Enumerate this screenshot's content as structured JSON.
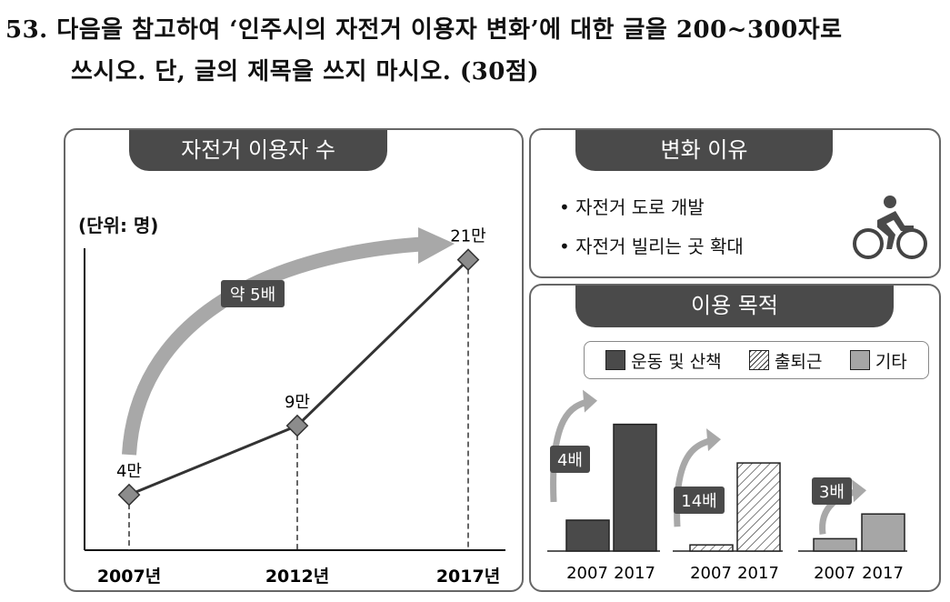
{
  "question": {
    "line1": "53. 다음을 참고하여 ‘인주시의 자전거 이용자 변화’에 대한 글을 200~300자로",
    "line2": "쓰시오. 단, 글의 제목을 쓰지 마시오. (30점)"
  },
  "reasons": {
    "title": "변화 이유",
    "items": [
      "• 자전거 도로 개발",
      "• 자전거 빌리는 곳 확대"
    ],
    "icon": "bicycle-rider-icon"
  },
  "colors": {
    "dark": "#4a4a4a",
    "arrow": "#a8a8a8",
    "light_bar": "#a6a6a6",
    "marker": "#8c8c8c"
  },
  "chart_data": [
    {
      "type": "line",
      "title": "자전거 이용자 수",
      "unit_label": "(단위: 명)",
      "categories": [
        "2007년",
        "2012년",
        "2017년"
      ],
      "values": [
        40000,
        90000,
        210000
      ],
      "data_labels": [
        "4만",
        "9만",
        "21만"
      ],
      "annotation": "약 5배",
      "ylim": [
        0,
        240000
      ]
    },
    {
      "type": "bar",
      "title": "이용 목적",
      "legend": [
        "운동 및 산책",
        "출퇴근",
        "기타"
      ],
      "legend_placement": "top",
      "groups": [
        {
          "name": "운동 및 산책",
          "categories": [
            "2007",
            "2017"
          ],
          "values": [
            1,
            4.1
          ],
          "annotation": "4배",
          "fill": "dark"
        },
        {
          "name": "출퇴근",
          "categories": [
            "2007",
            "2017"
          ],
          "values": [
            0.2,
            2.85
          ],
          "annotation": "14배",
          "fill": "hatch"
        },
        {
          "name": "기타",
          "categories": [
            "2007",
            "2017"
          ],
          "values": [
            0.4,
            1.2
          ],
          "annotation": "3배",
          "fill": "light"
        }
      ],
      "value_note": "relative heights estimated; no numeric axis shown"
    }
  ]
}
